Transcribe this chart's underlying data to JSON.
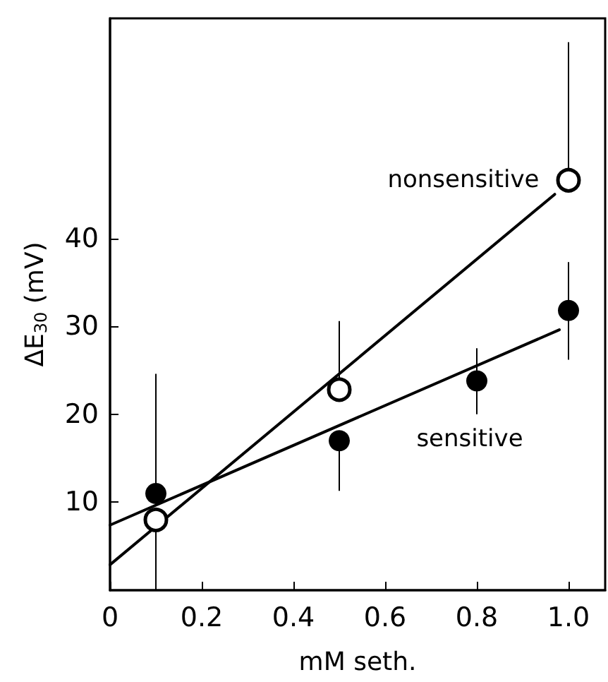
{
  "chart_data": {
    "type": "scatter",
    "xlabel": "mM seth.",
    "ylabel": "ΔE$_{30}$ (mV)",
    "xlim": [
      0,
      1.08
    ],
    "xticks": [
      0,
      0.2,
      0.4,
      0.6,
      0.8,
      {
        "value": 1,
        "label": "1.0"
      }
    ],
    "ylim": [
      0,
      65
    ],
    "yticks": [
      10,
      20,
      30,
      40
    ],
    "grid": false,
    "legend": false,
    "series": [
      {
        "name": "sensitive",
        "color": "#000000",
        "marker": "circle",
        "x": [
          0.1,
          0.5,
          0.8,
          1.0
        ],
        "values": [
          11,
          17,
          23.8,
          31.8
        ],
        "errors": [
          [
            11,
            24.6
          ],
          [
            11.3,
            17
          ],
          [
            20,
            27.5
          ],
          [
            26.2,
            37.3
          ]
        ]
      },
      {
        "name": "nonsensitive",
        "color": "#000000",
        "marker": "circle",
        "x": [
          0.1,
          0.5,
          1.0
        ],
        "values": [
          8,
          22.8,
          46.6
        ],
        "errors": [
          [
            0,
            8
          ],
          [
            22.8,
            30.6
          ],
          [
            46.6,
            62.3
          ]
        ]
      },
      {
        "type": "line",
        "color": "#000000",
        "marker": "none",
        "x": [
          0,
          0.98
        ],
        "values": [
          7.4,
          29.6
        ]
      },
      {
        "type": "line",
        "color": "#000000",
        "marker": "none",
        "x": [
          0,
          0.97
        ],
        "values": [
          2.9,
          45
        ]
      }
    ]
  }
}
